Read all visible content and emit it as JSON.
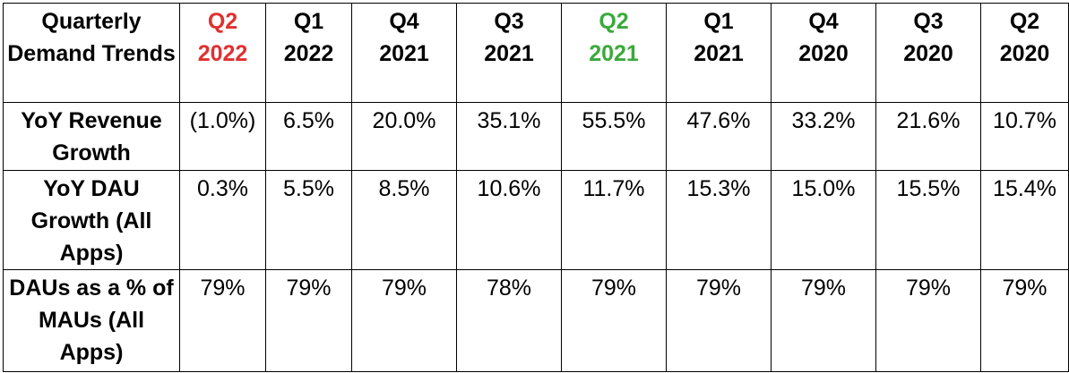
{
  "table": {
    "corner_label": "Quarterly Demand Trends",
    "highlight_colors": {
      "red": "#e03030",
      "green": "#3aaa3a"
    },
    "columns": [
      {
        "quarter": "Q2",
        "year": "2022",
        "color": "#e03030"
      },
      {
        "quarter": "Q1",
        "year": "2022",
        "color": "#000000"
      },
      {
        "quarter": "Q4",
        "year": "2021",
        "color": "#000000"
      },
      {
        "quarter": "Q3",
        "year": "2021",
        "color": "#000000"
      },
      {
        "quarter": "Q2",
        "year": "2021",
        "color": "#3aaa3a"
      },
      {
        "quarter": "Q1",
        "year": "2021",
        "color": "#000000"
      },
      {
        "quarter": "Q4",
        "year": "2020",
        "color": "#000000"
      },
      {
        "quarter": "Q3",
        "year": "2020",
        "color": "#000000"
      },
      {
        "quarter": "Q2",
        "year": "2020",
        "color": "#000000"
      }
    ],
    "rows": [
      {
        "label": "YoY Revenue Growth",
        "values": [
          "(1.0%)",
          "6.5%",
          "20.0%",
          "35.1%",
          "55.5%",
          "47.6%",
          "33.2%",
          "21.6%",
          "10.7%"
        ]
      },
      {
        "label": "YoY DAU Growth (All Apps)",
        "values": [
          "0.3%",
          "5.5%",
          "8.5%",
          "10.6%",
          "11.7%",
          "15.3%",
          "15.0%",
          "15.5%",
          "15.4%"
        ]
      },
      {
        "label": "DAUs as a % of MAUs (All Apps)",
        "values": [
          "79%",
          "79%",
          "79%",
          "78%",
          "79%",
          "79%",
          "79%",
          "79%",
          "79%"
        ]
      }
    ]
  }
}
